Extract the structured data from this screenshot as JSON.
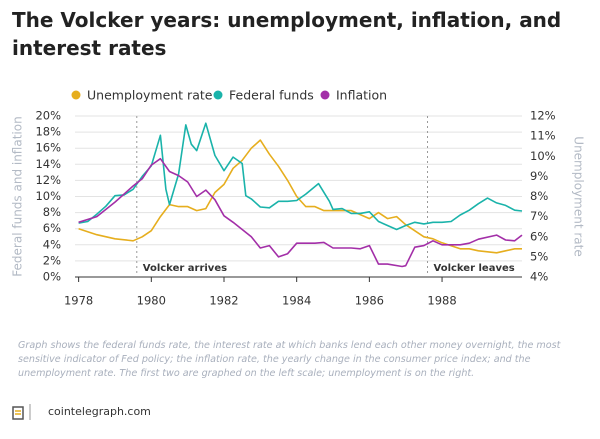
{
  "chart_data": {
    "type": "line",
    "title": "The Volcker years: unemployment, inflation, and interest rates",
    "y_label": "Federal funds and inflation",
    "y2_label": "Unemployment rate",
    "xlim": [
      1977.9,
      1990.2
    ],
    "xticks": [
      1978,
      1980,
      1982,
      1984,
      1986,
      1988
    ],
    "ylim": [
      0,
      20
    ],
    "yticks": [
      {
        "value": 0,
        "label": "0%"
      },
      {
        "value": 2,
        "label": "2%"
      },
      {
        "value": 4,
        "label": "4%"
      },
      {
        "value": 6,
        "label": "6%"
      },
      {
        "value": 8,
        "label": "8%"
      },
      {
        "value": 10,
        "label": "10%"
      },
      {
        "value": 12,
        "label": "12%"
      },
      {
        "value": 14,
        "label": "14%"
      },
      {
        "value": 16,
        "label": "16%"
      },
      {
        "value": 18,
        "label": "18%"
      },
      {
        "value": 20,
        "label": "20%"
      }
    ],
    "y2lim": [
      4,
      12
    ],
    "y2ticks": [
      {
        "value": 4,
        "label": "4%"
      },
      {
        "value": 5,
        "label": "5%"
      },
      {
        "value": 6,
        "label": "6%"
      },
      {
        "value": 7,
        "label": "7%"
      },
      {
        "value": 8,
        "label": "8%"
      },
      {
        "value": 9,
        "label": "9%"
      },
      {
        "value": 10,
        "label": "10%"
      },
      {
        "value": 11,
        "label": "11%"
      },
      {
        "value": 12,
        "label": "12%"
      }
    ],
    "grid": true,
    "series": [
      {
        "name": "Unemployment rate",
        "color": "#e6ae1e",
        "axis": "y2",
        "x": [
          1978.0,
          1978.5,
          1979.0,
          1979.5,
          1979.75,
          1980.0,
          1980.25,
          1980.5,
          1980.75,
          1981.0,
          1981.25,
          1981.5,
          1981.75,
          1982.0,
          1982.25,
          1982.5,
          1982.75,
          1983.0,
          1983.25,
          1983.5,
          1983.75,
          1984.0,
          1984.25,
          1984.5,
          1984.75,
          1985.0,
          1985.5,
          1986.0,
          1986.25,
          1986.5,
          1986.75,
          1987.0,
          1987.5,
          1987.75,
          1988.0,
          1988.5,
          1988.75,
          1989.0,
          1989.5,
          1989.75,
          1990.0,
          1990.2
        ],
        "values": [
          6.4,
          6.1,
          5.9,
          5.8,
          6.0,
          6.3,
          7.0,
          7.6,
          7.5,
          7.5,
          7.3,
          7.4,
          8.2,
          8.6,
          9.4,
          9.8,
          10.4,
          10.8,
          10.1,
          9.5,
          8.8,
          8.0,
          7.5,
          7.5,
          7.3,
          7.3,
          7.3,
          6.9,
          7.2,
          6.9,
          7.0,
          6.6,
          6.0,
          5.9,
          5.7,
          5.4,
          5.4,
          5.3,
          5.2,
          5.3,
          5.4,
          5.4
        ]
      },
      {
        "name": "Federal funds",
        "color": "#1ab3aa",
        "axis": "y",
        "x": [
          1978.0,
          1978.25,
          1978.5,
          1978.75,
          1979.0,
          1979.25,
          1979.5,
          1979.75,
          1980.0,
          1980.25,
          1980.4,
          1980.5,
          1980.75,
          1980.95,
          1981.1,
          1981.25,
          1981.5,
          1981.75,
          1982.0,
          1982.25,
          1982.5,
          1982.6,
          1982.75,
          1983.0,
          1983.25,
          1983.5,
          1983.75,
          1984.0,
          1984.25,
          1984.6,
          1984.9,
          1985.0,
          1985.25,
          1985.5,
          1985.75,
          1986.0,
          1986.25,
          1986.5,
          1986.75,
          1987.0,
          1987.25,
          1987.5,
          1987.75,
          1988.0,
          1988.25,
          1988.5,
          1988.75,
          1989.0,
          1989.25,
          1989.5,
          1989.75,
          1990.0,
          1990.2
        ],
        "values": [
          6.7,
          6.9,
          7.8,
          8.8,
          10.1,
          10.2,
          10.9,
          12.5,
          13.8,
          17.6,
          10.9,
          9.0,
          12.8,
          18.9,
          16.5,
          15.7,
          19.1,
          15.1,
          13.2,
          14.9,
          14.1,
          10.1,
          9.7,
          8.7,
          8.6,
          9.4,
          9.4,
          9.5,
          10.3,
          11.6,
          9.4,
          8.4,
          8.5,
          7.9,
          7.9,
          8.1,
          6.9,
          6.4,
          5.9,
          6.4,
          6.8,
          6.6,
          6.8,
          6.8,
          6.9,
          7.7,
          8.3,
          9.1,
          9.8,
          9.2,
          8.9,
          8.3,
          8.2
        ]
      },
      {
        "name": "Inflation",
        "color": "#a32fa8",
        "axis": "y",
        "x": [
          1978.0,
          1978.5,
          1979.0,
          1979.5,
          1979.75,
          1980.0,
          1980.25,
          1980.5,
          1980.75,
          1981.0,
          1981.25,
          1981.5,
          1981.75,
          1982.0,
          1982.25,
          1982.5,
          1982.75,
          1983.0,
          1983.25,
          1983.5,
          1983.75,
          1984.0,
          1984.5,
          1984.75,
          1985.0,
          1985.5,
          1985.75,
          1986.0,
          1986.25,
          1986.5,
          1986.9,
          1987.0,
          1987.25,
          1987.5,
          1987.75,
          1988.0,
          1988.5,
          1988.75,
          1989.0,
          1989.5,
          1989.75,
          1990.0,
          1990.2
        ],
        "values": [
          6.8,
          7.5,
          9.3,
          11.3,
          12.2,
          13.9,
          14.7,
          13.1,
          12.6,
          11.8,
          10.0,
          10.8,
          9.6,
          7.6,
          6.8,
          5.9,
          5.0,
          3.6,
          3.9,
          2.5,
          2.9,
          4.2,
          4.2,
          4.3,
          3.6,
          3.6,
          3.5,
          3.9,
          1.6,
          1.6,
          1.3,
          1.4,
          3.7,
          3.9,
          4.5,
          4.0,
          4.0,
          4.2,
          4.7,
          5.2,
          4.6,
          4.5,
          5.2
        ]
      }
    ],
    "annotations": [
      {
        "text": "Volcker arrives",
        "x": 1979.6
      },
      {
        "text": "Volcker leaves",
        "x": 1987.6
      }
    ],
    "caption": "Graph shows the federal funds rate, the interest rate at which banks lend each other money overnight, the most sensitive indicator of Fed policy; the inflation rate, the yearly change in the consumer price index; and the unemployment rate. The first two are graphed on the left scale; unemployment is on the right.",
    "source": "cointelegraph.com"
  }
}
